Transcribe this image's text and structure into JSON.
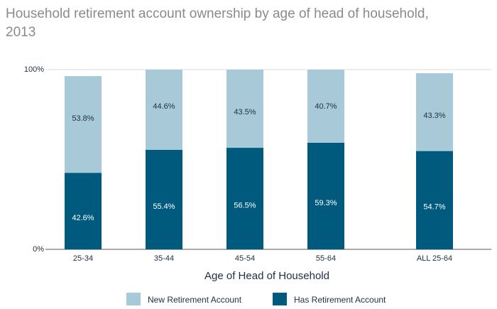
{
  "chart_data": {
    "type": "stacked_bar",
    "title": "Household retirement account ownership by age of head of household, 2013",
    "x_label": "Age of Head of Household",
    "categories": [
      "25-34",
      "35-44",
      "45-54",
      "55-64",
      "ALL 25-64"
    ],
    "series": [
      {
        "name": "Has Retirement Account",
        "color": "#005a7e",
        "values": [
          42.6,
          55.4,
          56.5,
          59.3,
          54.7
        ],
        "value_labels": [
          "42.6%",
          "55.4%",
          "56.5%",
          "59.3%",
          "54.7%"
        ]
      },
      {
        "name": "New Retirement Account",
        "color": "#a8cad8",
        "values": [
          53.8,
          44.6,
          43.5,
          40.7,
          43.3
        ],
        "value_labels": [
          "53.8%",
          "44.6%",
          "43.5%",
          "40.7%",
          "43.3%"
        ]
      }
    ],
    "ylim": [
      0,
      100
    ],
    "yticks": [
      {
        "value": 0,
        "label": "0%"
      },
      {
        "value": 100,
        "label": "100%"
      }
    ],
    "grid": true
  }
}
